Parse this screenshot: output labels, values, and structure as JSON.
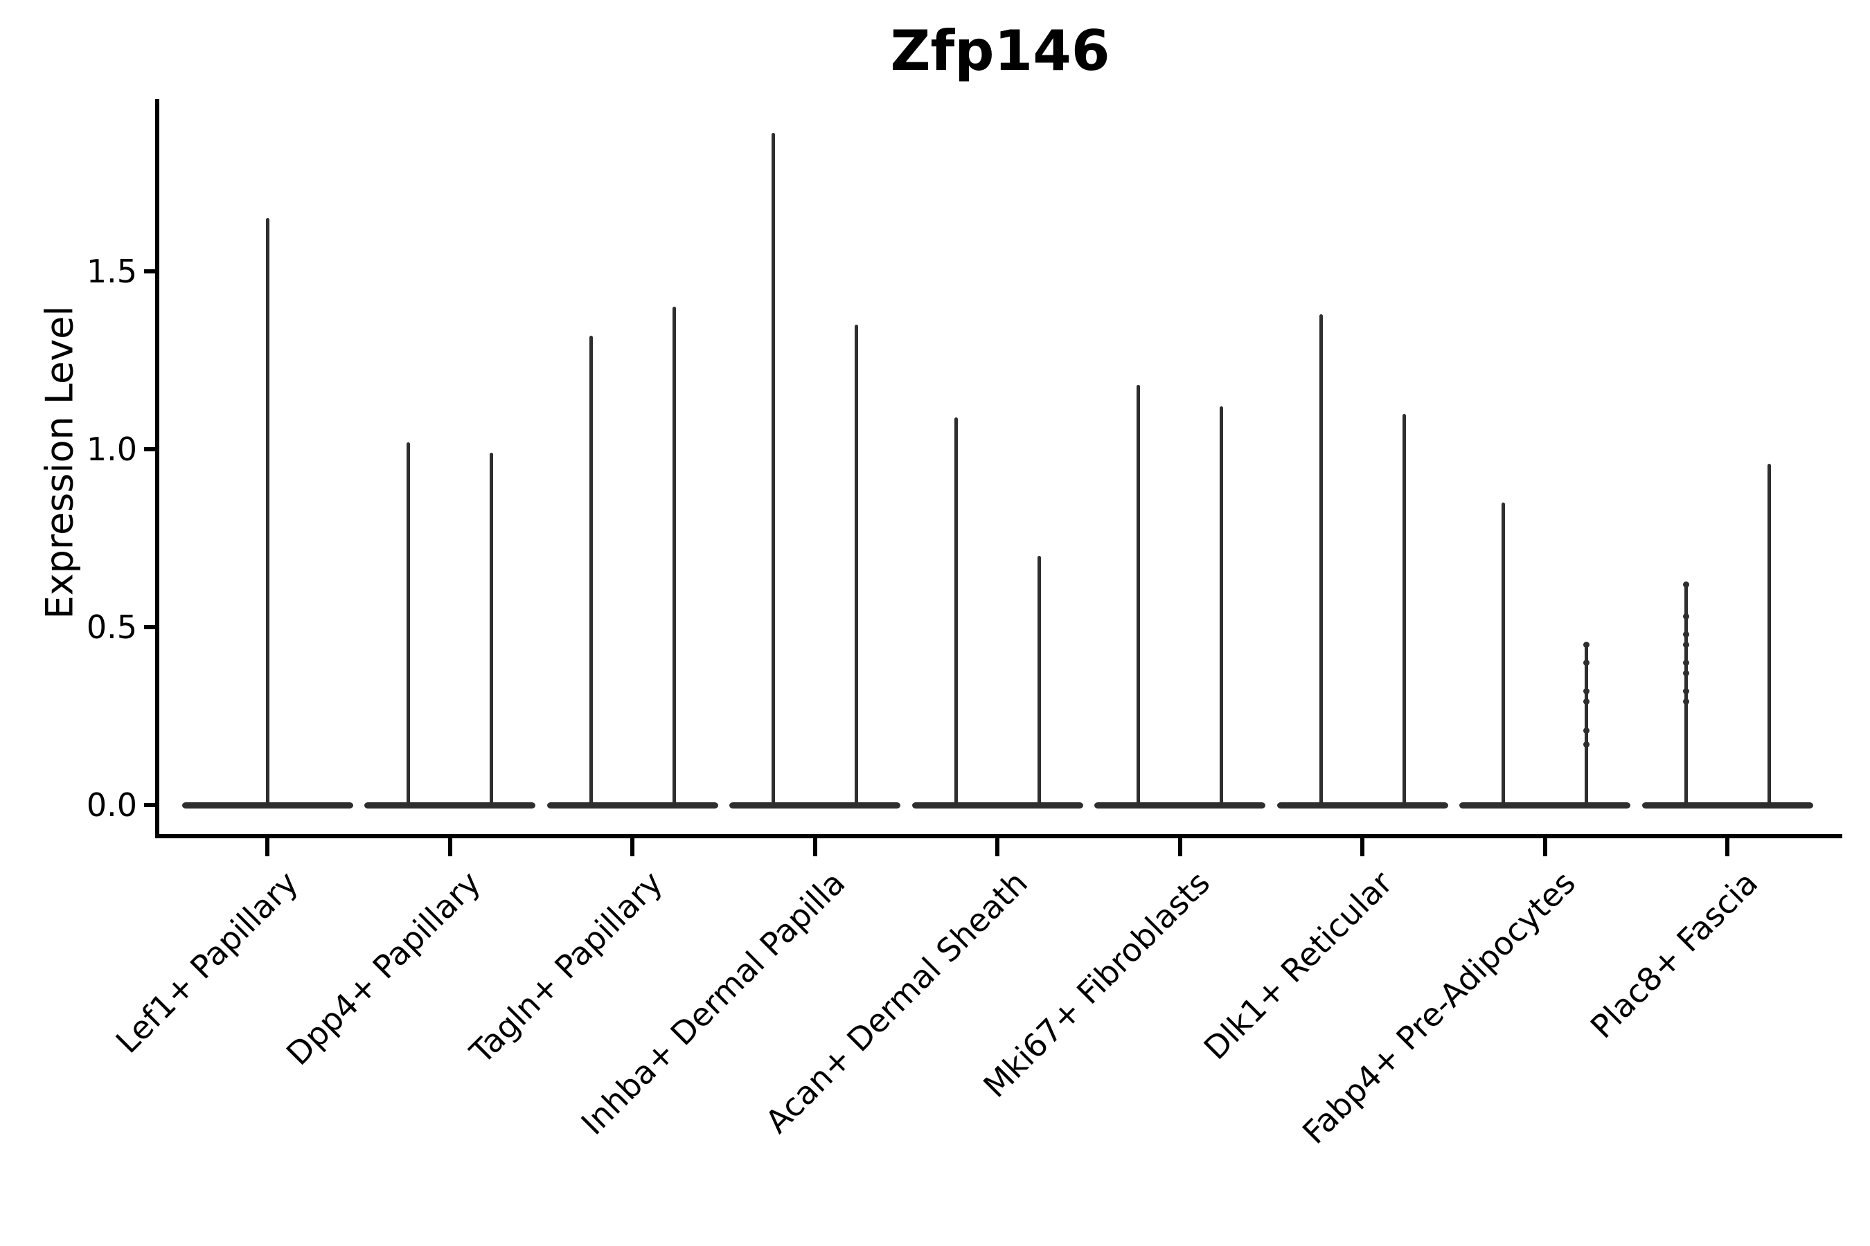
{
  "chart_data": {
    "type": "violin",
    "title": "Zfp146",
    "xlabel": "",
    "ylabel": "Expression Level",
    "ytick_labels": [
      "0.0",
      "0.5",
      "1.0",
      "1.5"
    ],
    "ytick_values": [
      0.0,
      0.5,
      1.0,
      1.5
    ],
    "ylim": [
      -0.09,
      1.98
    ],
    "grid": false,
    "legend": null,
    "ink_color": "#2e2e2e",
    "axis_color": "#000000",
    "description": "Needle-shaped violins: dense mass at expression 0 forming a wide flat base lens, thin spike rising to the max value. First category has one centered violin; all others have two side-by-side violins.",
    "groups": [
      {
        "label": "Lef1+ Papillary",
        "violin_max": [
          1.65
        ]
      },
      {
        "label": "Dpp4+ Papillary",
        "violin_max": [
          1.02,
          0.99
        ]
      },
      {
        "label": "Tagln+ Papillary",
        "violin_max": [
          1.32,
          1.4
        ]
      },
      {
        "label": "Inhba+ Dermal Papilla",
        "violin_max": [
          1.89,
          1.35
        ]
      },
      {
        "label": "Acan+ Dermal Sheath",
        "violin_max": [
          1.09,
          0.7
        ]
      },
      {
        "label": "Mki67+ Fibroblasts",
        "violin_max": [
          1.18,
          1.12
        ]
      },
      {
        "label": "Dlk1+ Reticular",
        "violin_max": [
          1.38,
          1.1
        ]
      },
      {
        "label": "Fabp4+ Pre-Adipocytes",
        "violin_max": [
          0.85,
          0.45
        ]
      },
      {
        "label": "Plac8+ Fascia",
        "violin_max": [
          0.62,
          0.96
        ]
      }
    ],
    "scatter_points": [
      {
        "group": "Fabp4+ Pre-Adipocytes",
        "violin_index": 1,
        "values": [
          0.45,
          0.4,
          0.32,
          0.29,
          0.21,
          0.17
        ]
      },
      {
        "group": "Plac8+ Fascia",
        "violin_index": 0,
        "values": [
          0.62,
          0.53,
          0.48,
          0.45,
          0.4,
          0.37,
          0.32,
          0.29
        ]
      }
    ]
  }
}
